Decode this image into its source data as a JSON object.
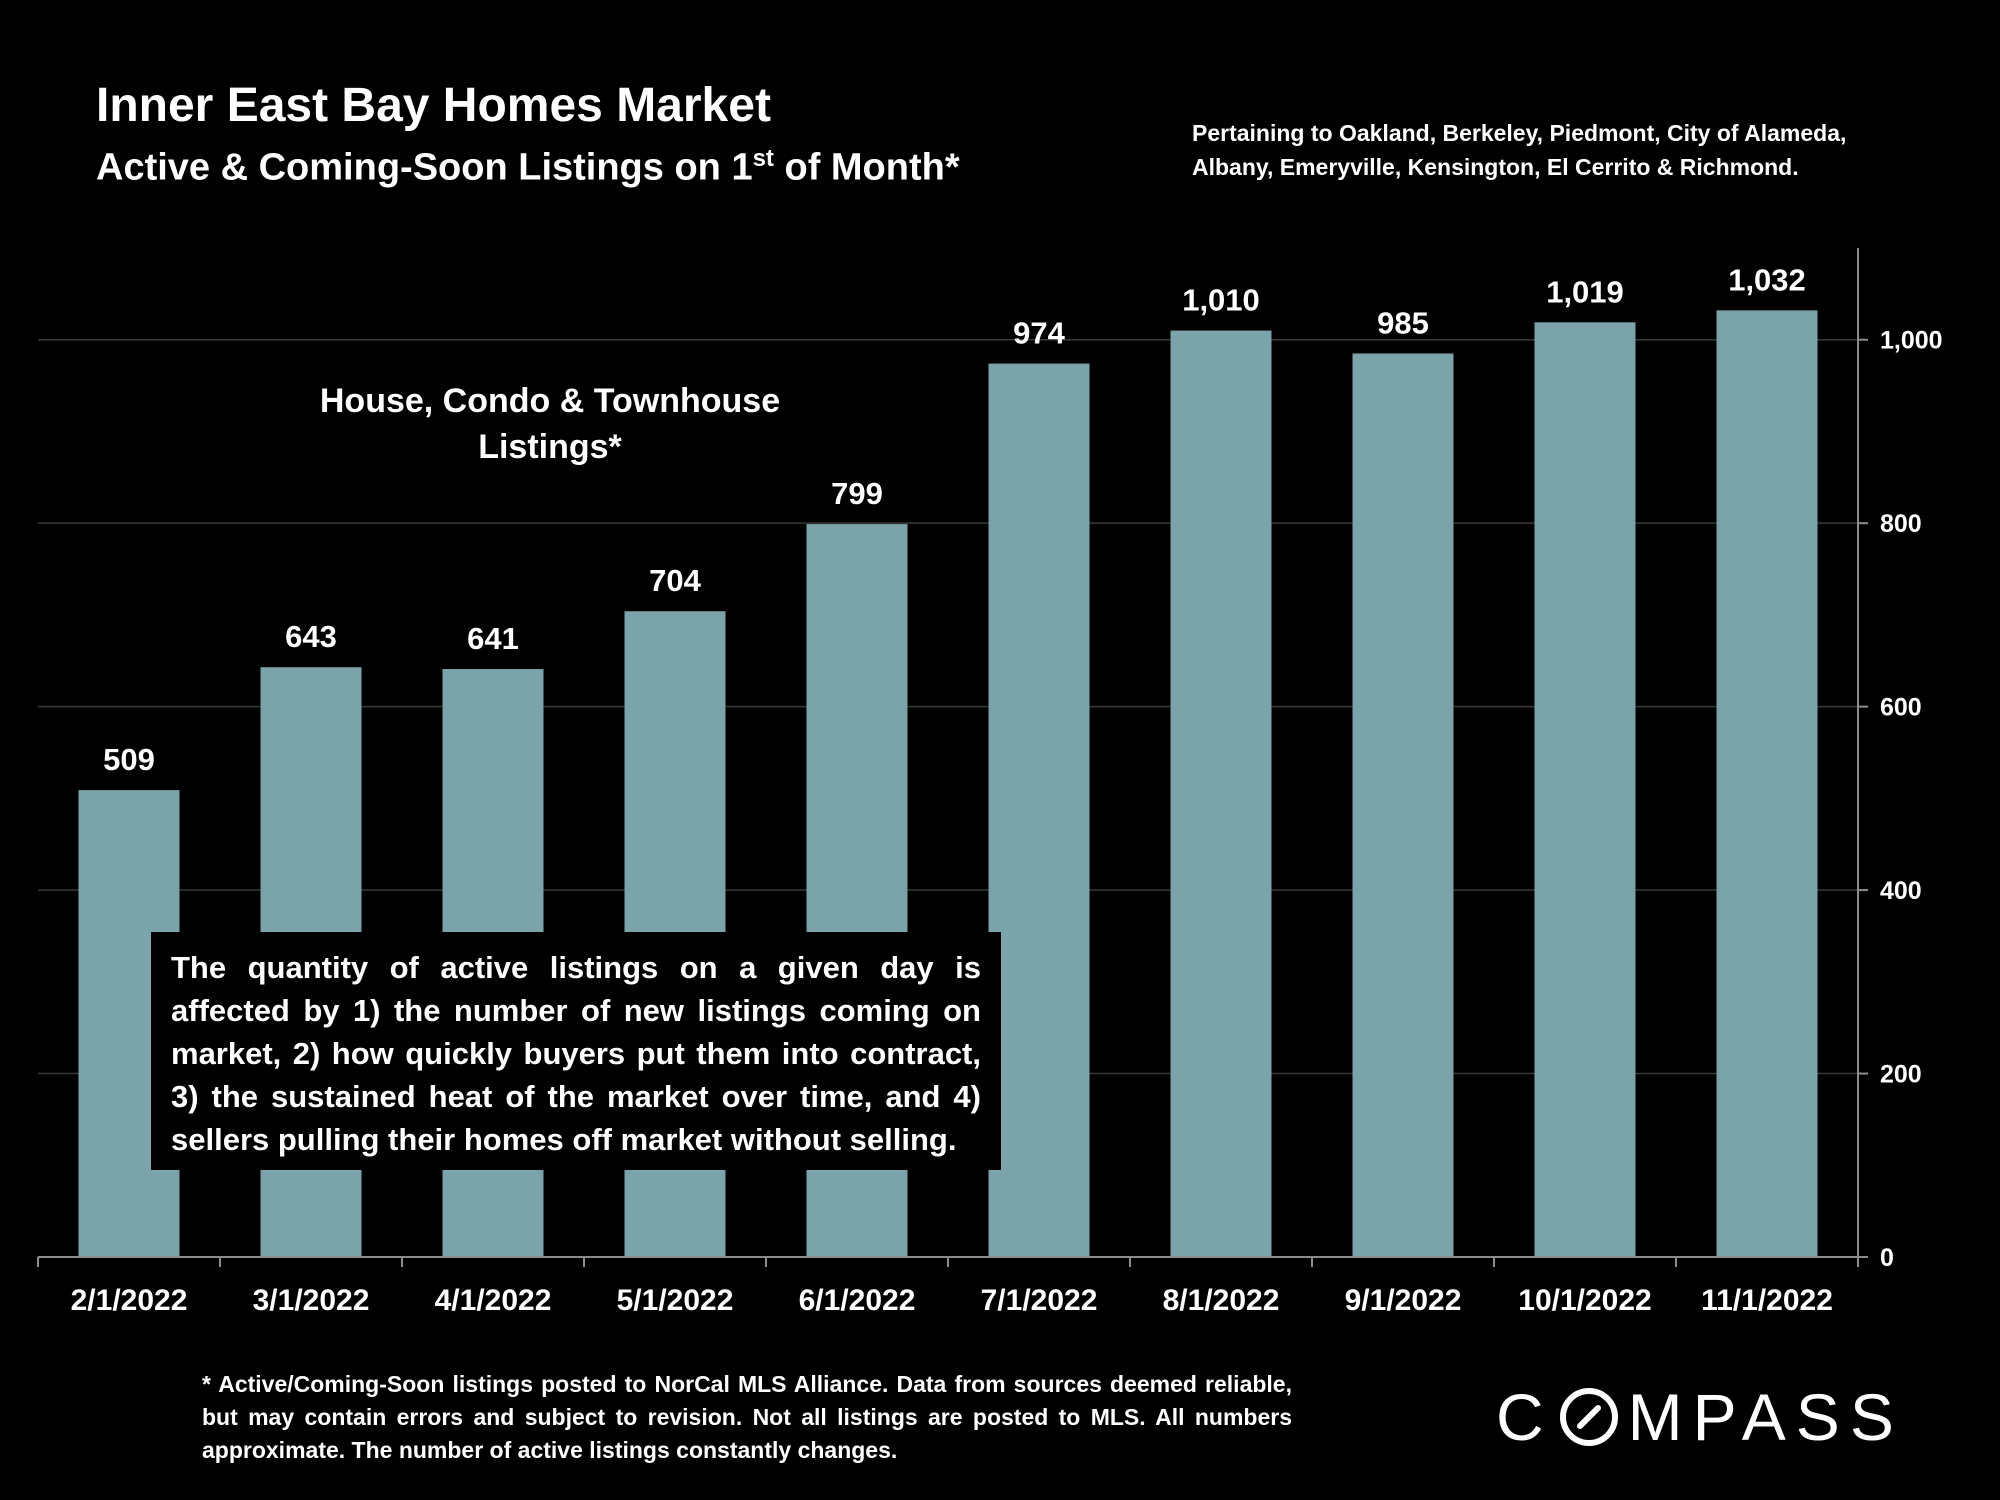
{
  "header": {
    "title": "Inner East Bay Homes Market",
    "subtitle_main": "Active & Coming-Soon Listings on 1",
    "subtitle_sup": "st",
    "subtitle_end": " of Month*",
    "pertaining": "Pertaining to Oakland, Berkeley, Piedmont, City of Alameda, Albany, Emeryville, Kensington, El Cerrito & Richmond."
  },
  "chart_data": {
    "type": "bar",
    "categories": [
      "2/1/2022",
      "3/1/2022",
      "4/1/2022",
      "5/1/2022",
      "6/1/2022",
      "7/1/2022",
      "8/1/2022",
      "9/1/2022",
      "10/1/2022",
      "11/1/2022"
    ],
    "series": [
      {
        "name": "House, Condo & Townhouse Listings*",
        "values": [
          509,
          643,
          641,
          704,
          799,
          974,
          1010,
          985,
          1019,
          1032
        ]
      }
    ],
    "data_labels": [
      "509",
      "643",
      "641",
      "704",
      "799",
      "974",
      "1,010",
      "985",
      "1,019",
      "1,032"
    ],
    "ylim": [
      0,
      1100
    ],
    "yticks": [
      0,
      200,
      400,
      600,
      800,
      1000
    ],
    "ytick_labels": [
      "0",
      "200",
      "400",
      "600",
      "800",
      "1,000"
    ],
    "y_axis_side": "right",
    "grid": true,
    "bar_color": "#7aa3aa",
    "grid_color": "#3a3a3a",
    "axis_color": "#8c8c8c"
  },
  "annotation": {
    "series_label": "House, Condo & Townhouse Listings*",
    "note": "The quantity of active listings on a given day is affected by 1) the number of new listings coming on market, 2) how quickly buyers put them into contract, 3) the sustained heat of the market over time, and 4) sellers pulling their homes off market without selling."
  },
  "footer": {
    "footnote": "* Active/Coming-Soon listings posted to NorCal MLS Alliance.  Data from sources deemed reliable, but may contain errors and subject to revision.  Not all listings are posted to MLS. All numbers approximate. The number of active listings constantly changes.",
    "logo_pre": "C",
    "logo_post": "MPASS",
    "logo_icon": "compass-o-icon"
  }
}
